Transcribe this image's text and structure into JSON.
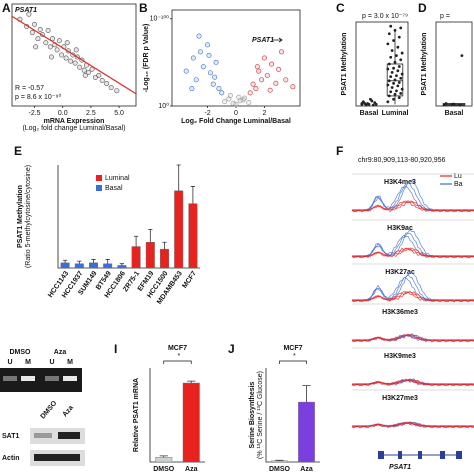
{
  "chart_data": [
    {
      "type": "scatter",
      "panel": "A",
      "xlabel": "mRNA Expression",
      "xlabel_note": "(Log₂ fold change Luminal/Basal)",
      "annotations": [
        "PSAT1",
        "R = -0.57",
        "p = 8.6 x 10⁻⁹⁰"
      ],
      "xlim": [
        -4.5,
        6.5
      ],
      "ylim": [
        0,
        1
      ],
      "xticks": [
        -2.5,
        {
          "value": 0,
          "label": "0.0"
        },
        2.5,
        {
          "value": 5,
          "label": "5.0"
        }
      ],
      "series": [
        {
          "color": "#555555",
          "marker": "circle",
          "x": [
            -3.8,
            -3.2,
            -3.0,
            -2.7,
            -2.5,
            -2.2,
            -2.0,
            -1.8,
            -1.5,
            -1.3,
            -1.1,
            -0.9,
            -0.7,
            -0.5,
            -0.3,
            -0.1,
            0.1,
            0.3,
            0.5,
            0.7,
            0.9,
            1.1,
            1.3,
            1.5,
            1.7,
            1.9,
            2.1,
            2.3,
            2.6,
            2.9,
            3.2,
            3.5,
            3.9,
            4.3,
            4.8,
            -2.4,
            -1.0,
            0.4,
            1.2,
            2.0
          ],
          "values": [
            0.85,
            0.78,
            0.9,
            0.72,
            0.8,
            0.66,
            0.75,
            0.7,
            0.62,
            0.74,
            0.58,
            0.66,
            0.6,
            0.55,
            0.64,
            0.5,
            0.58,
            0.47,
            0.54,
            0.44,
            0.5,
            0.42,
            0.48,
            0.38,
            0.45,
            0.35,
            0.4,
            0.33,
            0.36,
            0.28,
            0.3,
            0.25,
            0.22,
            0.18,
            0.15,
            0.58,
            0.48,
            0.62,
            0.55,
            0.3
          ]
        },
        {
          "color": "#d9342b",
          "marker": "line",
          "x": [
            -4.5,
            6.5
          ],
          "values": [
            0.88,
            0.12
          ]
        }
      ]
    },
    {
      "type": "scatter",
      "panel": "B",
      "ylabel": "-Log₁₀ (FDR p Value)",
      "xlabel": "Log₂ Fold Change Luminal/Basal",
      "annotations": [
        "PSAT1"
      ],
      "xlim": [
        -4.5,
        4.5
      ],
      "ylim": [
        0,
        110
      ],
      "xticks": [
        -2,
        0,
        2
      ],
      "yticks": [
        {
          "value": 0,
          "label": "10⁰"
        },
        {
          "value": 100,
          "label": "10⁻¹⁰⁰"
        }
      ],
      "series": [
        {
          "color": "#3a6fc4",
          "marker": "circle",
          "x": [
            -3.5,
            -3.0,
            -2.8,
            -2.5,
            -2.3,
            -2.0,
            -1.8,
            -1.6,
            -1.4,
            -1.2,
            -1.0,
            -2.6,
            -1.9,
            -1.5,
            -3.1
          ],
          "values": [
            40,
            55,
            30,
            62,
            45,
            70,
            38,
            25,
            50,
            20,
            15,
            80,
            58,
            33,
            20
          ]
        },
        {
          "color": "#c8343a",
          "marker": "circle",
          "x": [
            1.0,
            1.2,
            1.4,
            1.6,
            1.8,
            2.0,
            2.2,
            2.5,
            2.8,
            3.0,
            3.2,
            3.5,
            1.5,
            2.4,
            4.0
          ],
          "values": [
            15,
            25,
            20,
            40,
            30,
            55,
            35,
            48,
            26,
            42,
            62,
            30,
            45,
            18,
            22
          ]
        },
        {
          "color": "#999999",
          "marker": "circle",
          "x": [
            -0.8,
            -0.5,
            -0.2,
            0,
            0.3,
            0.6,
            0.9,
            -0.4,
            0.2,
            0.5
          ],
          "values": [
            5,
            8,
            3,
            2,
            6,
            9,
            4,
            12,
            10,
            7
          ]
        }
      ]
    },
    {
      "type": "strip",
      "panel": "C",
      "ylabel": "PSAT1 Methylation",
      "annotations": [
        "p = 3.0 x 10⁻⁷⁹"
      ],
      "ylim": [
        0,
        1
      ],
      "categories": [
        "Basal",
        "Luminal"
      ],
      "groups": [
        {
          "color": "#222222",
          "values": [
            0.02,
            0.03,
            0.01,
            0.05,
            0.02,
            0.04,
            0.03,
            0.08,
            0.02,
            0.01,
            0.06,
            0.03
          ]
        },
        {
          "color": "#222222",
          "values": [
            0.05,
            0.08,
            0.1,
            0.12,
            0.14,
            0.15,
            0.17,
            0.18,
            0.2,
            0.22,
            0.24,
            0.25,
            0.27,
            0.28,
            0.3,
            0.31,
            0.33,
            0.35,
            0.36,
            0.38,
            0.4,
            0.42,
            0.44,
            0.45,
            0.47,
            0.5,
            0.52,
            0.55,
            0.58,
            0.6,
            0.63,
            0.66,
            0.7,
            0.74,
            0.78,
            0.82,
            0.86,
            0.9,
            0.93,
            0.95
          ],
          "box": {
            "whisker_low": 0.02,
            "q1": 0.12,
            "median": 0.3,
            "q3": 0.5,
            "whisker_high": 0.92
          }
        }
      ]
    },
    {
      "type": "strip",
      "panel": "D",
      "ylabel": "PSAT1 Methylation",
      "annotations": [
        "p ="
      ],
      "ylim": [
        0,
        1
      ],
      "categories": [
        "Basal"
      ],
      "groups": [
        {
          "color": "#222222",
          "values": [
            0.01,
            0.02,
            0.01,
            0.03,
            0.02,
            0.6
          ],
          "box": {
            "whisker_low": 0.0,
            "q1": 0.01,
            "median": 0.02,
            "q3": 0.03,
            "whisker_high": 0.04
          }
        }
      ]
    },
    {
      "type": "bar",
      "panel": "E",
      "ylabel": "PSAT1 Methylation",
      "ylabel_note": "(Ratio 5-methylcytosine/cytosine)",
      "ylim": [
        0,
        12
      ],
      "categories": [
        "HCC1143",
        "HCC1937",
        "SUM149",
        "BT549",
        "HCC1806",
        "ZR75-1",
        "EFM19",
        "HCC1500",
        "MDAMB453",
        "MCF7"
      ],
      "series": [
        {
          "name": "Luminal",
          "color": "#e8231f",
          "values": [
            null,
            null,
            null,
            null,
            null,
            2.5,
            3.0,
            2.2,
            9.0,
            7.5
          ],
          "errors": [
            null,
            null,
            null,
            null,
            null,
            1.2,
            1.5,
            0.8,
            3.0,
            2.0
          ]
        },
        {
          "name": "Basal",
          "color": "#3b6fd8",
          "values": [
            0.6,
            0.5,
            0.6,
            0.5,
            0.3,
            null,
            null,
            null,
            null,
            null
          ],
          "errors": [
            0.3,
            0.3,
            0.4,
            0.5,
            0.2,
            null,
            null,
            null,
            null,
            null
          ]
        }
      ]
    },
    {
      "type": "tracks",
      "panel": "F",
      "coordinate": "chr9:80,909,113-80,920,956",
      "legend": [
        "Lu",
        "Ba"
      ],
      "colors": [
        "#e8231f",
        "#3b6fd8"
      ],
      "tracks": [
        "H3K4me3",
        "H3K9ac",
        "H3K27ac",
        "H3K36me3",
        "H3K9me3",
        "H3K27me3"
      ],
      "gene": "PSAT1"
    },
    {
      "type": "gel",
      "treatments": [
        "DMSO",
        "Aza"
      ],
      "lanes": [
        "U",
        "M",
        "U",
        "M"
      ],
      "blot_treatments": [
        "DMSO",
        "Aza"
      ],
      "rows": [
        "SAT1",
        "Actin"
      ]
    },
    {
      "type": "bar",
      "panel": "I",
      "title": "MCF7",
      "annotations": [
        "*"
      ],
      "ylabel": "Relative PSAT1 mRNA",
      "ylim": [
        0,
        20
      ],
      "categories": [
        "DMSO",
        "Aza"
      ],
      "colors": [
        "#c9d6cf",
        "#e8231f"
      ],
      "values": [
        1.0,
        16.8
      ],
      "errors": [
        0.3,
        0.4
      ]
    },
    {
      "type": "bar",
      "panel": "J",
      "title": "MCF7",
      "annotations": [
        "*"
      ],
      "ylabel": "Serine Biosynthesis",
      "ylabel_note": "(% ¹³C Serine / ¹³C Glucose)",
      "ylim": [
        0,
        8
      ],
      "categories": [
        "DMSO",
        "Aza"
      ],
      "colors": [
        "#c9d6cf",
        "#7b3fe0"
      ],
      "values": [
        0.1,
        5.1
      ],
      "errors": [
        0.05,
        1.4
      ]
    }
  ]
}
